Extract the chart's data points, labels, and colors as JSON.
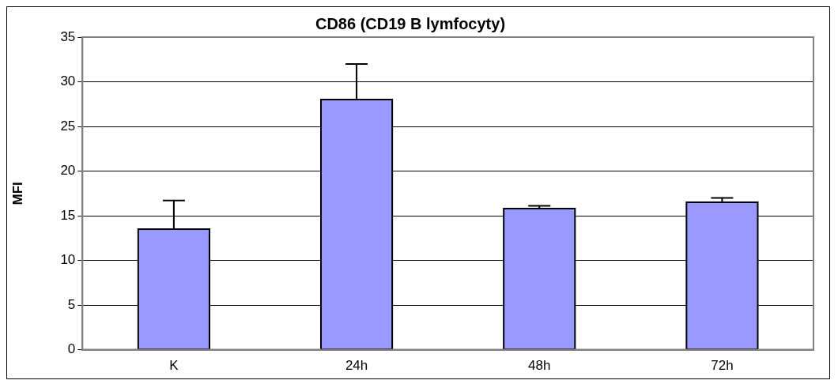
{
  "chart_data": {
    "type": "bar",
    "title": "CD86 (CD19 B lymfocyty)",
    "ylabel": "MFI",
    "categories": [
      "K",
      "24h",
      "48h",
      "72h"
    ],
    "values": [
      13.5,
      28,
      15.8,
      16.5
    ],
    "errors": [
      [
        13.5,
        16.7
      ],
      [
        28,
        32
      ],
      [
        15.8,
        16.1
      ],
      [
        16.5,
        17
      ]
    ],
    "color": "#9999ff",
    "ylim": [
      0,
      35
    ],
    "yticks": [
      0,
      5,
      10,
      15,
      20,
      25,
      30,
      35
    ],
    "grid": "y",
    "legend": false
  }
}
